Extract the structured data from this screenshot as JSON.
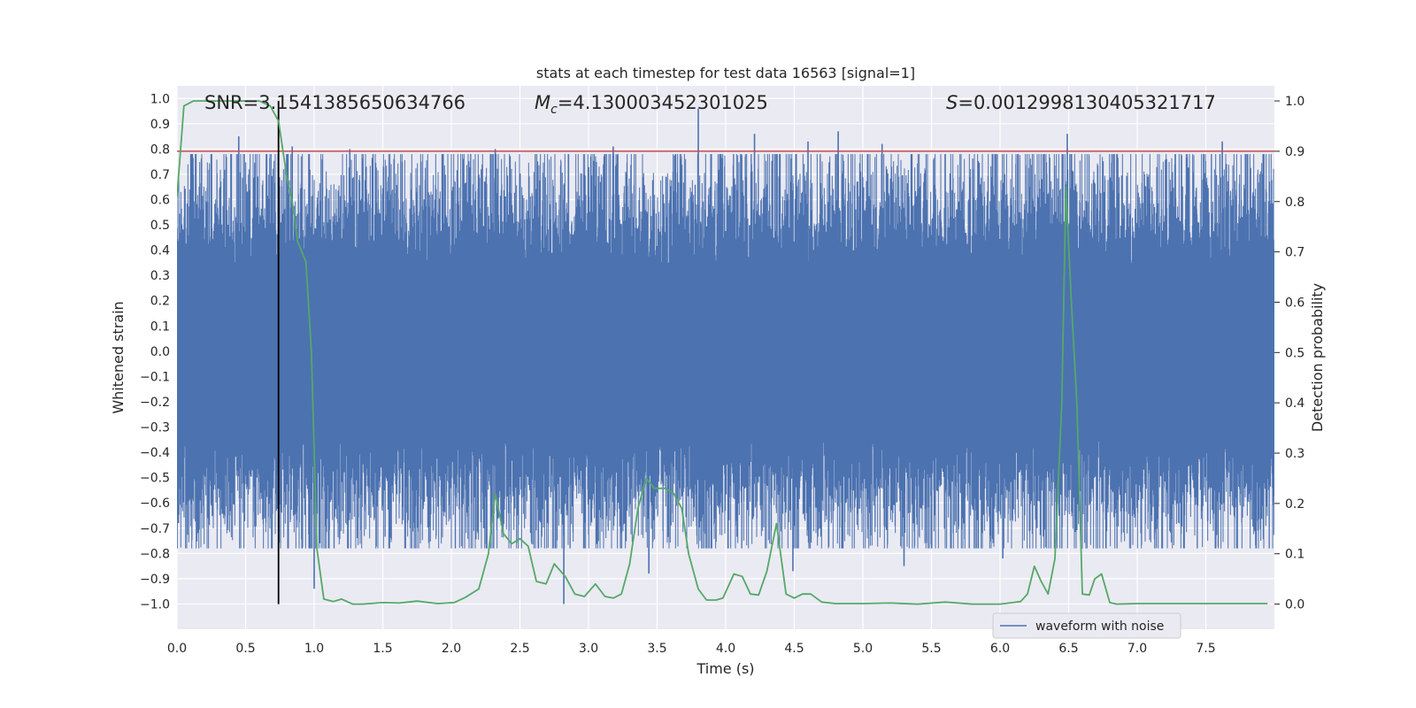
{
  "chart_data": {
    "type": "line",
    "title": "stats at each timestep for test data 16563 [signal=1]",
    "xlabel": "Time (s)",
    "ylabel": "Whitened strain",
    "y2label": "Detection probability",
    "xlim": [
      0.0,
      8.0
    ],
    "ylim": [
      -1.1,
      1.05
    ],
    "y2lim": [
      -0.05,
      1.03
    ],
    "xticks": [
      0.0,
      0.5,
      1.0,
      1.5,
      2.0,
      2.5,
      3.0,
      3.5,
      4.0,
      4.5,
      5.0,
      5.5,
      6.0,
      6.5,
      7.0,
      7.5
    ],
    "xtick_labels": [
      "0.0",
      "0.5",
      "1.0",
      "1.5",
      "2.0",
      "2.5",
      "3.0",
      "3.5",
      "4.0",
      "4.5",
      "5.0",
      "5.5",
      "6.0",
      "6.5",
      "7.0",
      "7.5"
    ],
    "yticks": [
      1.0,
      0.9,
      0.8,
      0.7,
      0.6,
      0.5,
      0.4,
      0.3,
      0.2,
      0.1,
      0.0,
      -0.1,
      -0.2,
      -0.3,
      -0.4,
      -0.5,
      -0.6,
      -0.7,
      -0.8,
      -0.9,
      -1.0
    ],
    "ytick_labels": [
      "1.0",
      "0.9",
      "0.8",
      "0.7",
      "0.6",
      "0.5",
      "0.4",
      "0.3",
      "0.2",
      "0.1",
      "0.0",
      "−0.1",
      "−0.2",
      "−0.3",
      "−0.4",
      "−0.5",
      "−0.6",
      "−0.7",
      "−0.8",
      "−0.9",
      "−1.0"
    ],
    "y2ticks": [
      1.0,
      0.9,
      0.8,
      0.7,
      0.6,
      0.5,
      0.4,
      0.3,
      0.2,
      0.1,
      0.0
    ],
    "y2tick_labels": [
      "1.0",
      "0.9",
      "0.8",
      "0.7",
      "0.6",
      "0.5",
      "0.4",
      "0.3",
      "0.2",
      "0.1",
      "0.0"
    ],
    "grid": true,
    "legend": {
      "entries": [
        "waveform with noise"
      ],
      "placement": "lower-right"
    },
    "annotations": {
      "snr_text": "SNR=3.1541385650634766",
      "mc_symbol": "M",
      "mc_sub": "c",
      "mc_value": "=4.130003452301025",
      "s_symbol": "S",
      "s_value": "=0.0012998130405321717"
    },
    "threshold": {
      "axis": "y2",
      "value": 0.9,
      "color": "#c44e52"
    },
    "vline": {
      "x": 0.74,
      "color": "#000000"
    },
    "series": [
      {
        "name": "waveform with noise",
        "axis": "y",
        "color": "#4c72b0",
        "style": "dense-noise",
        "typical_amplitude": 0.5,
        "spikes": [
          {
            "x": 0.45,
            "y": 0.85
          },
          {
            "x": 0.84,
            "y": 0.81
          },
          {
            "x": 1.26,
            "y": 0.8
          },
          {
            "x": 2.32,
            "y": 0.8
          },
          {
            "x": 3.18,
            "y": 0.81
          },
          {
            "x": 3.8,
            "y": 0.96
          },
          {
            "x": 4.21,
            "y": 0.86
          },
          {
            "x": 4.6,
            "y": 0.83
          },
          {
            "x": 4.82,
            "y": 0.87
          },
          {
            "x": 5.14,
            "y": 0.82
          },
          {
            "x": 6.49,
            "y": 0.86
          },
          {
            "x": 7.62,
            "y": 0.83
          },
          {
            "x": 2.82,
            "y": -1.0
          },
          {
            "x": 3.44,
            "y": -0.88
          },
          {
            "x": 1.0,
            "y": -0.94
          },
          {
            "x": 4.49,
            "y": -0.87
          },
          {
            "x": 5.3,
            "y": -0.85
          },
          {
            "x": 6.02,
            "y": -0.82
          },
          {
            "x": 0.01,
            "y": -0.68
          },
          {
            "x": 1.04,
            "y": -0.76
          }
        ]
      },
      {
        "name": "detection probability",
        "axis": "y2",
        "color": "#55a868",
        "x": [
          0.0,
          0.05,
          0.12,
          0.2,
          0.3,
          0.4,
          0.5,
          0.6,
          0.68,
          0.74,
          0.8,
          0.84,
          0.88,
          0.94,
          0.98,
          1.02,
          1.07,
          1.14,
          1.2,
          1.28,
          1.35,
          1.5,
          1.62,
          1.75,
          1.9,
          2.02,
          2.1,
          2.2,
          2.27,
          2.32,
          2.38,
          2.44,
          2.5,
          2.56,
          2.62,
          2.69,
          2.75,
          2.83,
          2.9,
          2.97,
          3.05,
          3.12,
          3.18,
          3.24,
          3.3,
          3.36,
          3.42,
          3.48,
          3.56,
          3.62,
          3.68,
          3.73,
          3.8,
          3.86,
          3.93,
          3.98,
          4.06,
          4.12,
          4.18,
          4.24,
          4.3,
          4.37,
          4.44,
          4.5,
          4.56,
          4.62,
          4.7,
          4.8,
          5.0,
          5.2,
          5.4,
          5.6,
          5.8,
          6.0,
          6.15,
          6.2,
          6.25,
          6.3,
          6.35,
          6.4,
          6.45,
          6.48,
          6.52,
          6.56,
          6.6,
          6.65,
          6.69,
          6.74,
          6.8,
          6.85,
          7.0,
          7.25,
          7.5,
          7.75,
          7.95
        ],
        "values": [
          0.81,
          0.99,
          1.0,
          1.0,
          1.0,
          1.0,
          1.0,
          1.0,
          0.99,
          0.96,
          0.85,
          0.8,
          0.72,
          0.68,
          0.5,
          0.11,
          0.01,
          0.005,
          0.01,
          0.0,
          0.0,
          0.003,
          0.002,
          0.006,
          0.001,
          0.003,
          0.013,
          0.03,
          0.1,
          0.22,
          0.14,
          0.12,
          0.13,
          0.115,
          0.045,
          0.04,
          0.08,
          0.055,
          0.02,
          0.015,
          0.04,
          0.015,
          0.012,
          0.02,
          0.08,
          0.19,
          0.25,
          0.23,
          0.23,
          0.22,
          0.19,
          0.1,
          0.03,
          0.008,
          0.008,
          0.012,
          0.06,
          0.055,
          0.02,
          0.018,
          0.065,
          0.16,
          0.02,
          0.012,
          0.02,
          0.02,
          0.004,
          0.001,
          0.001,
          0.002,
          0.0,
          0.004,
          0.0,
          0.0,
          0.005,
          0.02,
          0.075,
          0.045,
          0.02,
          0.09,
          0.4,
          0.83,
          0.6,
          0.4,
          0.02,
          0.018,
          0.05,
          0.06,
          0.003,
          0.0,
          0.001,
          0.001,
          0.001,
          0.001,
          0.001
        ]
      }
    ]
  }
}
